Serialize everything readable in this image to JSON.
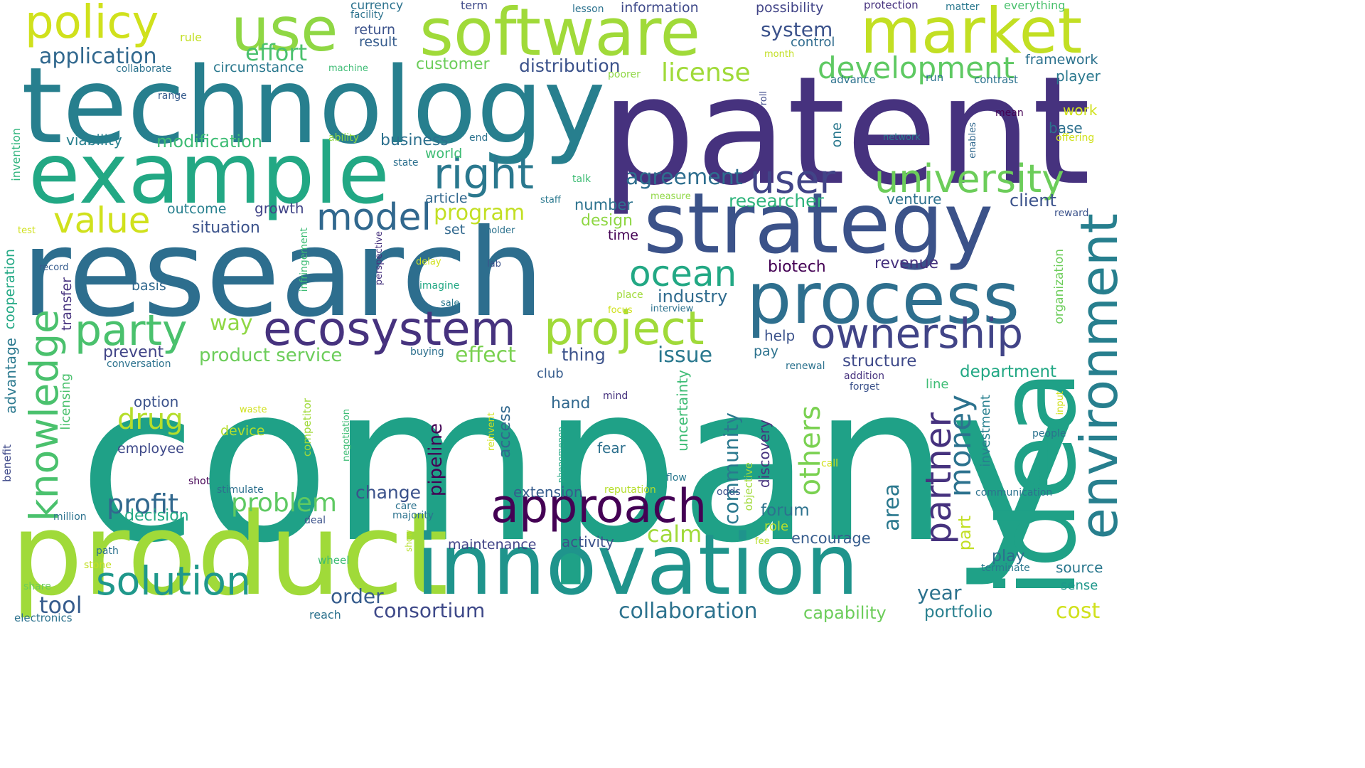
{
  "palette": [
    "#440154",
    "#46327e",
    "#365c8d",
    "#277f8e",
    "#1fa187",
    "#4ac16d",
    "#a0da39",
    "#d0e11c"
  ],
  "words": [
    {
      "text": "company",
      "color": "#1fa187"
    },
    {
      "text": "patent",
      "color": "#46327e"
    },
    {
      "text": "research",
      "color": "#2d6e8e"
    },
    {
      "text": "technology",
      "color": "#277f8e"
    },
    {
      "text": "product",
      "color": "#a0da39"
    },
    {
      "text": "innovation",
      "color": "#1f948c"
    },
    {
      "text": "idea",
      "color": "#1fa187"
    },
    {
      "text": "strategy",
      "color": "#3b5289"
    },
    {
      "text": "example",
      "color": "#22a884"
    },
    {
      "text": "software",
      "color": "#a0da39"
    },
    {
      "text": "process",
      "color": "#2e6f8e"
    },
    {
      "text": "market",
      "color": "#c2df23"
    },
    {
      "text": "use",
      "color": "#8fd744"
    },
    {
      "text": "environment",
      "color": "#277f8e"
    },
    {
      "text": "ecosystem",
      "color": "#46327e"
    },
    {
      "text": "ownership",
      "color": "#414487"
    },
    {
      "text": "approach",
      "color": "#440154"
    },
    {
      "text": "project",
      "color": "#a0da39"
    },
    {
      "text": "policy",
      "color": "#d0e11c"
    },
    {
      "text": "right",
      "color": "#2a788e"
    },
    {
      "text": "knowledge",
      "color": "#4ac16d"
    },
    {
      "text": "party",
      "color": "#4ac16d"
    },
    {
      "text": "solution",
      "color": "#1f988b"
    },
    {
      "text": "university",
      "color": "#6ccd5a"
    },
    {
      "text": "user",
      "color": "#414487"
    },
    {
      "text": "partner",
      "color": "#46327e"
    },
    {
      "text": "model",
      "color": "#31688e"
    },
    {
      "text": "value",
      "color": "#d0e11c"
    },
    {
      "text": "ocean",
      "color": "#22a884"
    },
    {
      "text": "development",
      "color": "#5ec962"
    },
    {
      "text": "money",
      "color": "#2c728e"
    },
    {
      "text": "others",
      "color": "#7ad151"
    },
    {
      "text": "license",
      "color": "#a0da39"
    },
    {
      "text": "agreement",
      "color": "#2e6e8e"
    },
    {
      "text": "problem",
      "color": "#5ec962"
    },
    {
      "text": "profit",
      "color": "#31688e"
    },
    {
      "text": "application",
      "color": "#31688e"
    },
    {
      "text": "community",
      "color": "#2a788e"
    },
    {
      "text": "drug",
      "color": "#b5de2b"
    },
    {
      "text": "effort",
      "color": "#4ac16d"
    },
    {
      "text": "program",
      "color": "#c2df23"
    },
    {
      "text": "researcher",
      "color": "#2fb47c"
    },
    {
      "text": "system",
      "color": "#3b528b"
    },
    {
      "text": "collaboration",
      "color": "#2c728e"
    },
    {
      "text": "tool",
      "color": "#365c8d"
    },
    {
      "text": "consortium",
      "color": "#3e4989"
    },
    {
      "text": "area",
      "color": "#2a788e"
    },
    {
      "text": "effect",
      "color": "#7ad151"
    },
    {
      "text": "issue",
      "color": "#2a788e"
    },
    {
      "text": "calm",
      "color": "#a0da39"
    },
    {
      "text": "product service",
      "color": "#6ccd5a"
    },
    {
      "text": "order",
      "color": "#365c8d"
    },
    {
      "text": "cost",
      "color": "#d0e11c"
    },
    {
      "text": "way",
      "color": "#8fd744"
    },
    {
      "text": "industry",
      "color": "#2f6b8e"
    },
    {
      "text": "client",
      "color": "#3b528b"
    },
    {
      "text": "customer",
      "color": "#6ccd5a"
    },
    {
      "text": "distribution",
      "color": "#3b528b"
    },
    {
      "text": "modification",
      "color": "#3dbc74"
    },
    {
      "text": "business",
      "color": "#2d708e"
    },
    {
      "text": "biotech",
      "color": "#440154"
    },
    {
      "text": "department",
      "color": "#22a884"
    },
    {
      "text": "structure",
      "color": "#3e4989"
    },
    {
      "text": "year",
      "color": "#2c728e"
    },
    {
      "text": "portfolio",
      "color": "#277f8e"
    },
    {
      "text": "capability",
      "color": "#6ccd5a"
    },
    {
      "text": "change",
      "color": "#3b528b"
    },
    {
      "text": "thing",
      "color": "#3b528b"
    },
    {
      "text": "part",
      "color": "#c2df23"
    },
    {
      "text": "forum",
      "color": "#2c728e"
    },
    {
      "text": "revenue",
      "color": "#46327e"
    },
    {
      "text": "pipeline",
      "color": "#440154"
    },
    {
      "text": "access",
      "color": "#31688e"
    },
    {
      "text": "uncertainty",
      "color": "#3dbc74"
    },
    {
      "text": "discovery",
      "color": "#46327e"
    },
    {
      "text": "advantage",
      "color": "#2a788e"
    },
    {
      "text": "cooperation",
      "color": "#22a884"
    },
    {
      "text": "transfer",
      "color": "#46327e"
    },
    {
      "text": "prevent",
      "color": "#414487"
    },
    {
      "text": "decision",
      "color": "#22a884"
    },
    {
      "text": "situation",
      "color": "#3b528b"
    },
    {
      "text": "growth",
      "color": "#414487"
    },
    {
      "text": "outcome",
      "color": "#277f8e"
    },
    {
      "text": "viability",
      "color": "#277f8e"
    },
    {
      "text": "basis",
      "color": "#31688e"
    },
    {
      "text": "set",
      "color": "#31688e"
    },
    {
      "text": "design",
      "color": "#8fd744"
    },
    {
      "text": "number",
      "color": "#2c728e"
    },
    {
      "text": "time",
      "color": "#440154"
    },
    {
      "text": "help",
      "color": "#3b528b"
    },
    {
      "text": "pay",
      "color": "#2c728e"
    },
    {
      "text": "encourage",
      "color": "#365c8d"
    },
    {
      "text": "play",
      "color": "#2d6e8e"
    },
    {
      "text": "source",
      "color": "#2a788e"
    },
    {
      "text": "sense",
      "color": "#1f988b"
    },
    {
      "text": "framework",
      "color": "#2c728e"
    },
    {
      "text": "player",
      "color": "#2a788e"
    },
    {
      "text": "work",
      "color": "#d0e11c"
    },
    {
      "text": "base",
      "color": "#2d708e"
    },
    {
      "text": "venture",
      "color": "#2d708e"
    },
    {
      "text": "activity",
      "color": "#3b528b"
    },
    {
      "text": "maintenance",
      "color": "#414487"
    },
    {
      "text": "extension",
      "color": "#365c8d"
    },
    {
      "text": "hand",
      "color": "#31688e"
    },
    {
      "text": "fear",
      "color": "#2d708e"
    },
    {
      "text": "option",
      "color": "#3b528b"
    },
    {
      "text": "employee",
      "color": "#3e4989"
    },
    {
      "text": "device",
      "color": "#b5de2b"
    },
    {
      "text": "role",
      "color": "#b5de2b"
    },
    {
      "text": "club",
      "color": "#365c8d"
    },
    {
      "text": "licensing",
      "color": "#4ac16d"
    },
    {
      "text": "one",
      "color": "#2a788e"
    },
    {
      "text": "investment",
      "color": "#277f8e"
    },
    {
      "text": "organization",
      "color": "#6ccd5a"
    },
    {
      "text": "line",
      "color": "#3dbc74"
    },
    {
      "text": "world",
      "color": "#3dbc74"
    },
    {
      "text": "article",
      "color": "#31688e"
    },
    {
      "text": "information",
      "color": "#3e4989"
    },
    {
      "text": "possibility",
      "color": "#414487"
    },
    {
      "text": "return",
      "color": "#3b528b"
    },
    {
      "text": "result",
      "color": "#365c8d"
    },
    {
      "text": "currency",
      "color": "#2c728e"
    },
    {
      "text": "control",
      "color": "#2f6b8e"
    },
    {
      "text": "circumstance",
      "color": "#2a788e"
    },
    {
      "text": "term",
      "color": "#3e4989"
    },
    {
      "text": "protection",
      "color": "#46327e"
    },
    {
      "text": "matter",
      "color": "#2a788e"
    },
    {
      "text": "everything",
      "color": "#4ac16d"
    },
    {
      "text": "facility",
      "color": "#2c728e"
    },
    {
      "text": "lesson",
      "color": "#2c728e"
    },
    {
      "text": "month",
      "color": "#c2df23"
    },
    {
      "text": "rule",
      "color": "#c2df23"
    },
    {
      "text": "collaborate",
      "color": "#2c728e"
    },
    {
      "text": "machine",
      "color": "#3dbc74"
    },
    {
      "text": "range",
      "color": "#365c8d"
    },
    {
      "text": "poorer",
      "color": "#8fd744"
    },
    {
      "text": "advance",
      "color": "#2c728e"
    },
    {
      "text": "run",
      "color": "#2c728e"
    },
    {
      "text": "contrast",
      "color": "#2c728e"
    },
    {
      "text": "mean",
      "color": "#440154"
    },
    {
      "text": "roll",
      "color": "#3e4989"
    },
    {
      "text": "network",
      "color": "#2a788e"
    },
    {
      "text": "enables",
      "color": "#31688e"
    },
    {
      "text": "offering",
      "color": "#d0e11c"
    },
    {
      "text": "reward",
      "color": "#3b528b"
    },
    {
      "text": "talk",
      "color": "#3dbc74"
    },
    {
      "text": "end",
      "color": "#2c728e"
    },
    {
      "text": "ability",
      "color": "#8fd744"
    },
    {
      "text": "state",
      "color": "#2d708e"
    },
    {
      "text": "invention",
      "color": "#2fb47c"
    },
    {
      "text": "test",
      "color": "#d0e11c"
    },
    {
      "text": "record",
      "color": "#365c8d"
    },
    {
      "text": "staff",
      "color": "#2a788e"
    },
    {
      "text": "measure",
      "color": "#8fd744"
    },
    {
      "text": "holder",
      "color": "#2c728e"
    },
    {
      "text": "lab",
      "color": "#3b528b"
    },
    {
      "text": "delay",
      "color": "#d0e11c"
    },
    {
      "text": "imagine",
      "color": "#22a884"
    },
    {
      "text": "perspective",
      "color": "#46327e"
    },
    {
      "text": "infringement",
      "color": "#3dbc74"
    },
    {
      "text": "sale",
      "color": "#2a788e"
    },
    {
      "text": "place",
      "color": "#a0da39"
    },
    {
      "text": "focus",
      "color": "#d0e11c"
    },
    {
      "text": "interview",
      "color": "#2c728e"
    },
    {
      "text": "buying",
      "color": "#2d708e"
    },
    {
      "text": "conversation",
      "color": "#2c728e"
    },
    {
      "text": "renewal",
      "color": "#2c728e"
    },
    {
      "text": "addition",
      "color": "#46327e"
    },
    {
      "text": "forget",
      "color": "#3b528b"
    },
    {
      "text": "mind",
      "color": "#46327e"
    },
    {
      "text": "waste",
      "color": "#d0e11c"
    },
    {
      "text": "competitor",
      "color": "#a0da39"
    },
    {
      "text": "negotiation",
      "color": "#3dbc74"
    },
    {
      "text": "reinvent",
      "color": "#d0e11c"
    },
    {
      "text": "phenomenon",
      "color": "#22a884"
    },
    {
      "text": "objective",
      "color": "#a0da39"
    },
    {
      "text": "flow",
      "color": "#2a788e"
    },
    {
      "text": "odds",
      "color": "#3b528b"
    },
    {
      "text": "reputation",
      "color": "#b5de2b"
    },
    {
      "text": "shot",
      "color": "#440154"
    },
    {
      "text": "stimulate",
      "color": "#2d708e"
    },
    {
      "text": "million",
      "color": "#2c728e"
    },
    {
      "text": "deal",
      "color": "#3b528b"
    },
    {
      "text": "care",
      "color": "#2c728e"
    },
    {
      "text": "majority",
      "color": "#2c728e"
    },
    {
      "text": "benefit",
      "color": "#3e4989"
    },
    {
      "text": "path",
      "color": "#2c728e"
    },
    {
      "text": "stone",
      "color": "#c2df23"
    },
    {
      "text": "share",
      "color": "#6ccd5a"
    },
    {
      "text": "electronics",
      "color": "#2c728e"
    },
    {
      "text": "wheel",
      "color": "#3dbc74"
    },
    {
      "text": "show",
      "color": "#b5de2b"
    },
    {
      "text": "reach",
      "color": "#2c728e"
    },
    {
      "text": "fee",
      "color": "#b5de2b"
    },
    {
      "text": "input",
      "color": "#d0e11c"
    },
    {
      "text": "people",
      "color": "#2c728e"
    },
    {
      "text": "call",
      "color": "#d0e11c"
    },
    {
      "text": "communication",
      "color": "#2c728e"
    },
    {
      "text": "terminate",
      "color": "#2a788e"
    }
  ]
}
